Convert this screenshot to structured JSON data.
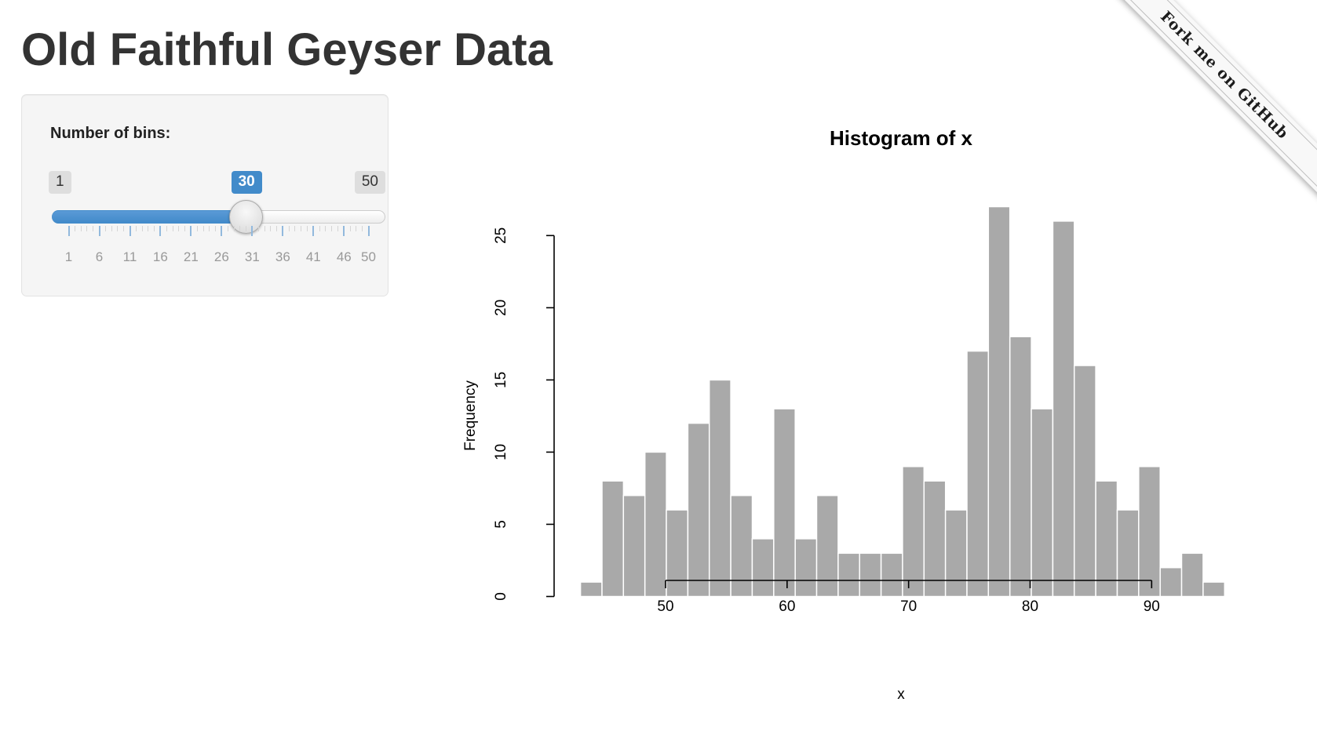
{
  "app": {
    "title": "Old Faithful Geyser Data"
  },
  "ribbon": {
    "label": "Fork me on GitHub"
  },
  "controls": {
    "bins_label": "Number of bins:",
    "slider": {
      "min": 1,
      "max": 50,
      "value": 30,
      "min_label": "1",
      "max_label": "50",
      "value_label": "30",
      "grid_labels": [
        1,
        6,
        11,
        16,
        21,
        26,
        31,
        36,
        41,
        46,
        50
      ],
      "accent_color": "#428bca"
    }
  },
  "chart_data": {
    "type": "bar",
    "title": "Histogram of x",
    "xlabel": "x",
    "ylabel": "Frequency",
    "bins": {
      "start": 43,
      "end": 96,
      "count": 30
    },
    "counts": [
      1,
      8,
      7,
      10,
      6,
      12,
      15,
      7,
      4,
      13,
      4,
      7,
      3,
      3,
      3,
      9,
      8,
      6,
      17,
      27,
      18,
      13,
      26,
      16,
      8,
      6,
      9,
      2,
      3,
      1
    ],
    "x_ticks": [
      50,
      60,
      70,
      80,
      90
    ],
    "y_ticks": [
      0,
      5,
      10,
      15,
      20,
      25
    ],
    "ylim": [
      0,
      27
    ],
    "grid": false,
    "legend": "none",
    "bar_fill": "#a9a9a9",
    "bar_stroke": "#ffffff",
    "axis_color": "#000000"
  },
  "colors": {
    "panel_bg": "#f5f5f5",
    "panel_border": "#e3e3e3",
    "accent": "#428bca"
  }
}
